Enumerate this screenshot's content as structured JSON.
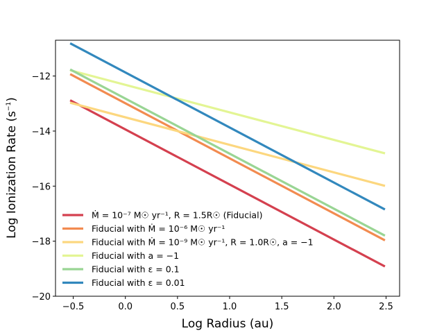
{
  "chart_data": {
    "type": "line",
    "title": "",
    "xlabel": "Log Radius (au)",
    "ylabel": "Log Ionization Rate (s",
    "ylabel_unit_superscript": "−1",
    "ylabel_close": ")",
    "xlim": [
      -0.67,
      2.63
    ],
    "ylim": [
      -20,
      -10.7
    ],
    "x_ticks": [
      -0.5,
      0.0,
      0.5,
      1.0,
      1.5,
      2.0,
      2.5
    ],
    "x_tick_labels": [
      "−0.5",
      "0.0",
      "0.5",
      "1.0",
      "1.5",
      "2.0",
      "2.5"
    ],
    "y_ticks": [
      -20,
      -18,
      -16,
      -14,
      -12
    ],
    "y_tick_labels": [
      "−20",
      "−18",
      "−16",
      "−14",
      "−12"
    ],
    "grid": false,
    "legend_position": "lower-left",
    "series": [
      {
        "name": "Ṁ = 10⁻⁷ M☉ yr⁻¹, R = 1.5R☉ (Fiducial)",
        "color": "#d4404f",
        "x": [
          -0.52,
          2.48
        ],
        "y": [
          -12.9,
          -18.9
        ]
      },
      {
        "name": "Fiducial with Ṁ = 10⁻⁶ M☉ yr⁻¹",
        "color": "#f28b50",
        "x": [
          -0.52,
          2.48
        ],
        "y": [
          -11.95,
          -17.95
        ]
      },
      {
        "name": "Fiducial with Ṁ = 10⁻⁹ M☉ yr⁻¹, R = 1.0R☉, a = −1",
        "color": "#fcd77f",
        "x": [
          -0.52,
          2.48
        ],
        "y": [
          -12.98,
          -15.98
        ]
      },
      {
        "name": "Fiducial with a = −1",
        "color": "#e3f594",
        "x": [
          -0.52,
          2.48
        ],
        "y": [
          -11.8,
          -14.8
        ]
      },
      {
        "name": "Fiducial with ε = 0.1",
        "color": "#99d594",
        "x": [
          -0.52,
          2.48
        ],
        "y": [
          -11.78,
          -17.78
        ]
      },
      {
        "name": "Fiducial with ε = 0.01",
        "color": "#3288bd",
        "x": [
          -0.52,
          2.48
        ],
        "y": [
          -10.83,
          -16.83
        ]
      }
    ]
  }
}
